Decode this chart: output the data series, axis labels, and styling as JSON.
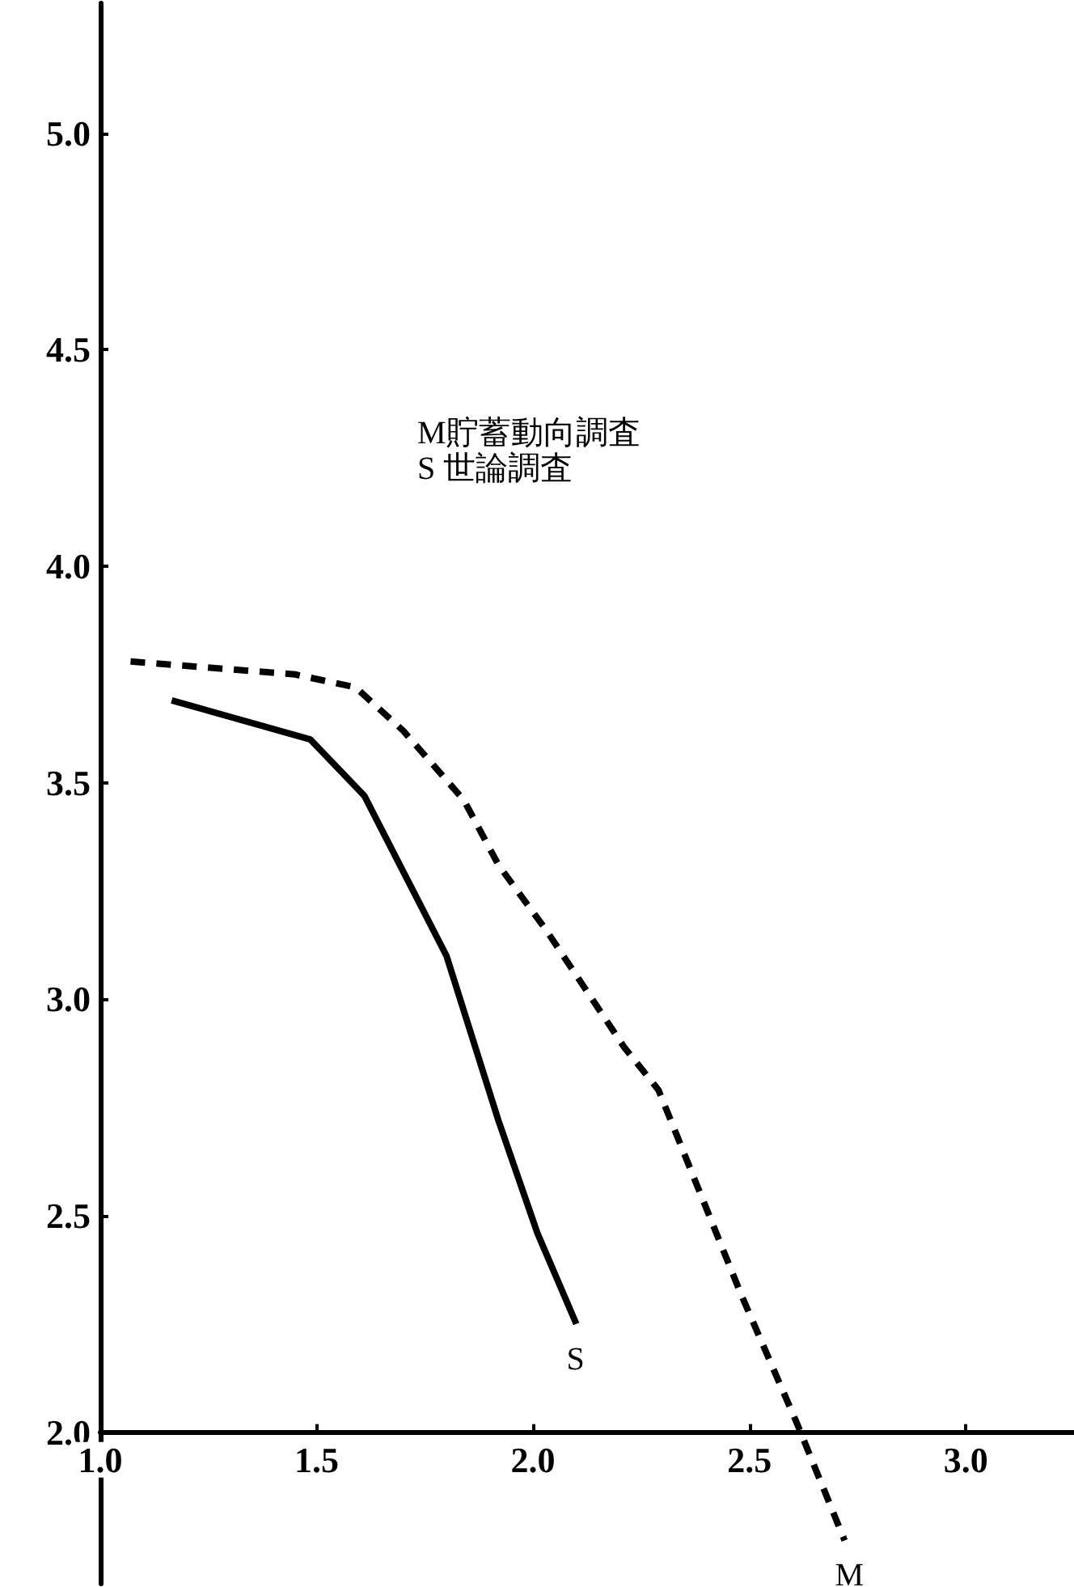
{
  "chart_data": {
    "type": "line",
    "annotations": [
      "M貯蓄動向調査",
      "S 世論調査"
    ],
    "series": [
      {
        "name": "S",
        "color": "#000000",
        "line_style": "solid",
        "x": [
          1.165,
          1.485,
          1.61,
          1.8,
          1.92,
          2.01,
          2.1
        ],
        "values": [
          3.69,
          3.6,
          3.47,
          3.1,
          2.72,
          2.46,
          2.25
        ]
      },
      {
        "name": "M",
        "color": "#000000",
        "line_style": "dashed",
        "x": [
          1.07,
          1.45,
          1.59,
          1.7,
          1.84,
          1.92,
          2.03,
          2.21,
          2.29,
          2.48,
          2.61,
          2.72
        ],
        "values": [
          3.78,
          3.75,
          3.72,
          3.62,
          3.46,
          3.31,
          3.16,
          2.89,
          2.79,
          2.32,
          2.02,
          1.75
        ]
      }
    ],
    "xlim": [
      1.0,
      3.25
    ],
    "ylim": [
      1.65,
      5.3
    ],
    "xticks": [
      {
        "value": 1,
        "label": "1.0"
      },
      1.5,
      {
        "value": 2,
        "label": "2.0"
      },
      2.5,
      {
        "value": 3,
        "label": "3.0"
      }
    ],
    "yticks": [
      {
        "value": 2,
        "label": "2.0"
      },
      2.5,
      {
        "value": 3,
        "label": "3.0"
      },
      3.5,
      {
        "value": 4,
        "label": "4.0"
      },
      4.5,
      {
        "value": 5,
        "label": "5.0"
      }
    ],
    "grid": false,
    "legend": false,
    "marker": "none"
  }
}
